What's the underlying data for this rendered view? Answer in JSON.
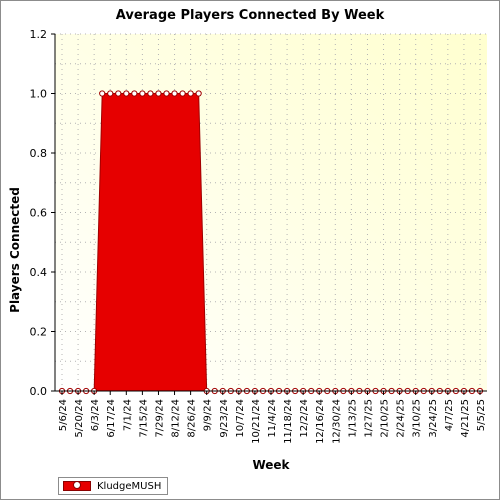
{
  "chart_data": {
    "type": "area",
    "title": "Average Players Connected By Week",
    "xlabel": "Week",
    "ylabel": "Players Connected",
    "ylim": [
      0,
      1.2
    ],
    "yticks": [
      "0.0",
      "0.2",
      "0.4",
      "0.6",
      "0.8",
      "1.0",
      "1.2"
    ],
    "x_tick_labels": [
      "5/6/24",
      "5/20/24",
      "6/3/24",
      "6/17/24",
      "7/1/24",
      "7/15/24",
      "7/29/24",
      "8/12/24",
      "8/26/24",
      "9/9/24",
      "9/23/24",
      "10/7/24",
      "10/21/24",
      "11/4/24",
      "11/18/24",
      "12/2/24",
      "12/16/24",
      "12/30/24",
      "1/13/25",
      "1/27/25",
      "2/10/25",
      "2/24/25",
      "3/10/25",
      "3/24/25",
      "4/7/25",
      "4/21/25",
      "5/5/25"
    ],
    "grid": true,
    "legend_position": "bottom-left",
    "series": [
      {
        "name": "KludgeMUSH",
        "color": "#e60000",
        "x": [
          "5/6/24",
          "5/13/24",
          "5/20/24",
          "5/27/24",
          "6/3/24",
          "6/10/24",
          "6/17/24",
          "6/24/24",
          "7/1/24",
          "7/8/24",
          "7/15/24",
          "7/22/24",
          "7/29/24",
          "8/5/24",
          "8/12/24",
          "8/19/24",
          "8/26/24",
          "9/2/24",
          "9/9/24",
          "9/16/24",
          "9/23/24",
          "9/30/24",
          "10/7/24",
          "10/14/24",
          "10/21/24",
          "10/28/24",
          "11/4/24",
          "11/11/24",
          "11/18/24",
          "11/25/24",
          "12/2/24",
          "12/9/24",
          "12/16/24",
          "12/23/24",
          "12/30/24",
          "1/6/25",
          "1/13/25",
          "1/20/25",
          "1/27/25",
          "2/3/25",
          "2/10/25",
          "2/17/25",
          "2/24/25",
          "3/3/25",
          "3/10/25",
          "3/17/25",
          "3/24/25",
          "3/31/25",
          "4/7/25",
          "4/14/25",
          "4/21/25",
          "4/28/25",
          "5/5/25"
        ],
        "values": [
          0,
          0,
          0,
          0,
          0,
          1,
          1,
          1,
          1,
          1,
          1,
          1,
          1,
          1,
          1,
          1,
          1,
          1,
          0,
          0,
          0,
          0,
          0,
          0,
          0,
          0,
          0,
          0,
          0,
          0,
          0,
          0,
          0,
          0,
          0,
          0,
          0,
          0,
          0,
          0,
          0,
          0,
          0,
          0,
          0,
          0,
          0,
          0,
          0,
          0,
          0,
          0,
          0
        ]
      }
    ]
  }
}
